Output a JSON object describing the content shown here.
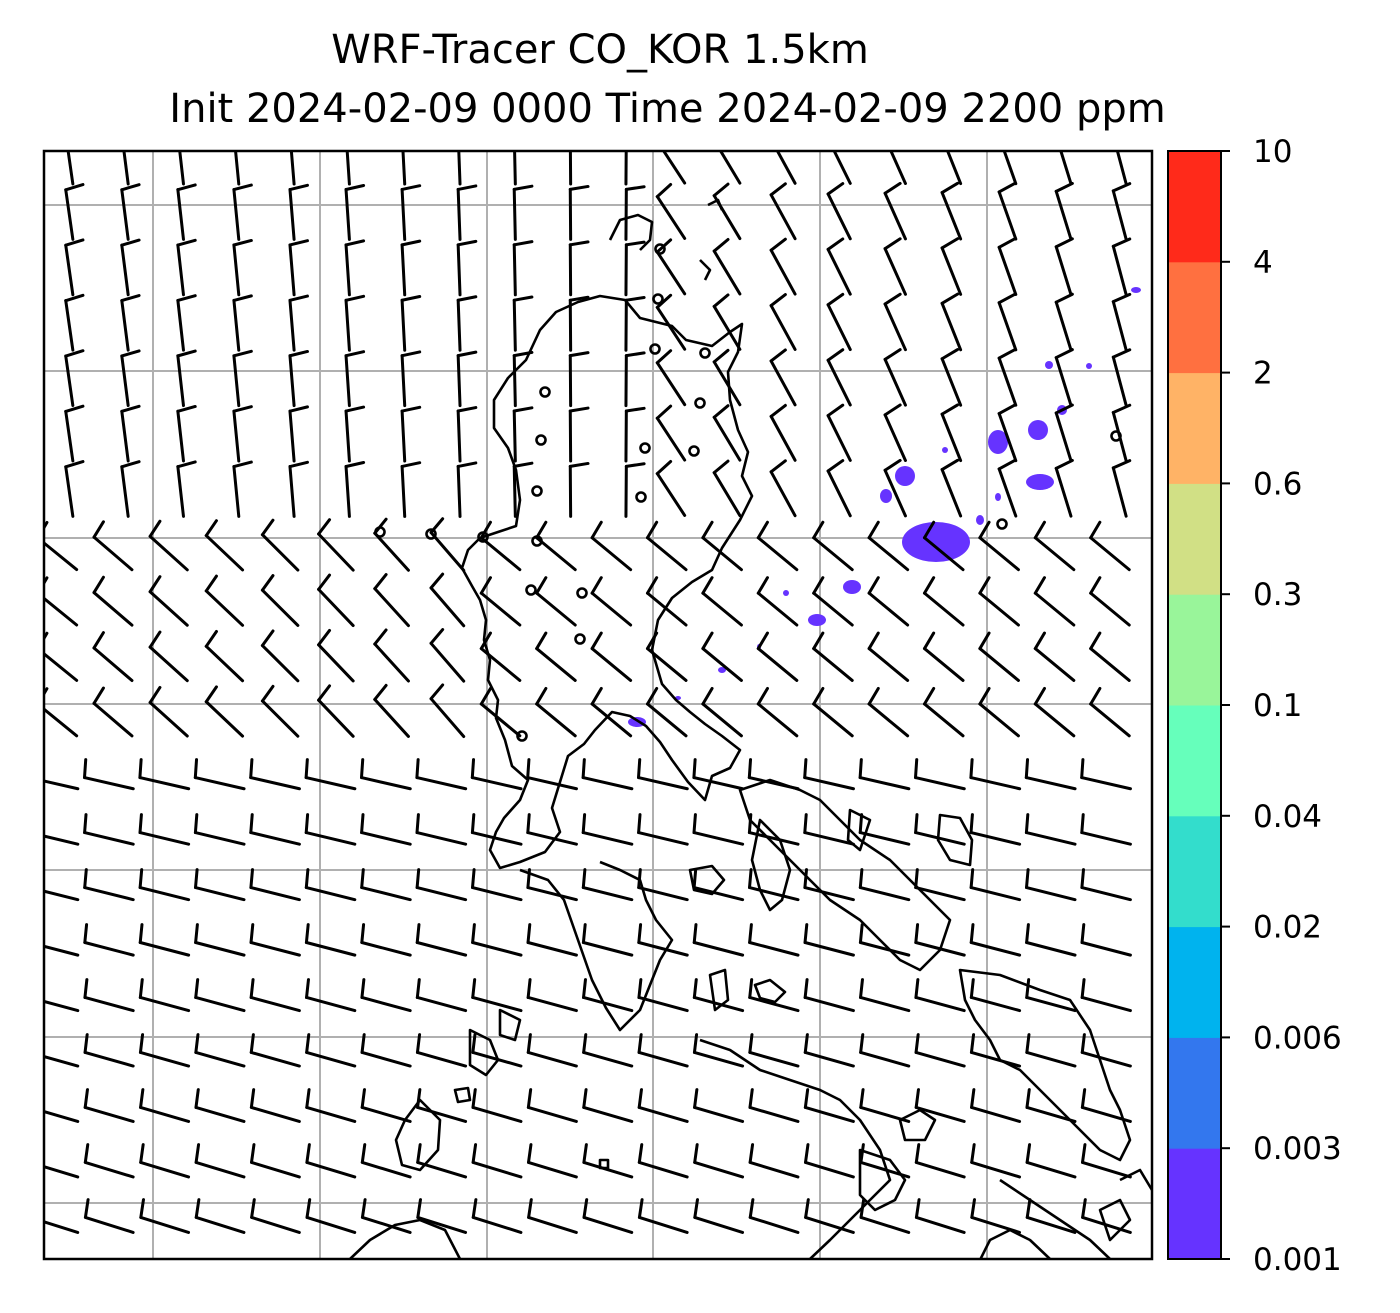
{
  "title": {
    "line1": "WRF-Tracer CO_KOR 1.5km",
    "line2": "Init 2024-02-09 0000 Time 2024-02-09 2200 ppm"
  },
  "colorbar": {
    "levels": [
      "0.001",
      "0.003",
      "0.006",
      "0.02",
      "0.04",
      "0.1",
      "0.3",
      "0.6",
      "2",
      "4",
      "10"
    ],
    "colors": [
      "#6633ff",
      "#3377ee",
      "#00b3ee",
      "#33ddcc",
      "#66ffbb",
      "#99f59a",
      "#d1e085",
      "#ffb366",
      "#ff7040",
      "#ff2a1a"
    ]
  },
  "map": {
    "gridlines": true,
    "features": [
      "wind-barbs",
      "coastlines",
      "tracer-plumes"
    ]
  }
}
